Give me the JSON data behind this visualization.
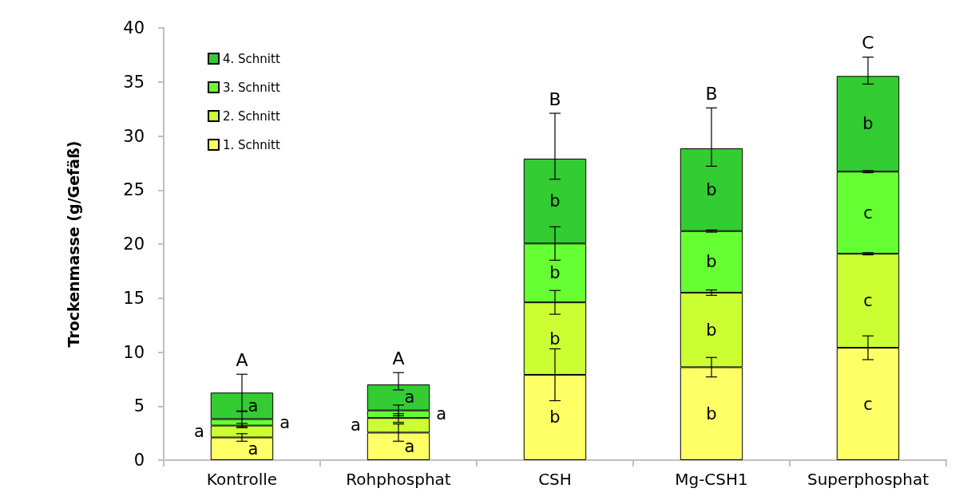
{
  "chart_data": {
    "type": "bar",
    "stacked": true,
    "ylabel": "Trockenmasse (g/Gefäß)",
    "categories": [
      "Kontrolle",
      "Rohphosphat",
      "CSH",
      "Mg-CSH1",
      "Superphosphat"
    ],
    "series": [
      {
        "name": "1. Schnitt",
        "color": "#ffff66",
        "values": [
          2.1,
          2.55,
          7.9,
          8.6,
          10.4
        ],
        "errors": [
          0.35,
          0.8,
          2.4,
          0.9,
          1.1
        ],
        "value_labels": [
          "a",
          "a",
          "b",
          "b",
          "c"
        ]
      },
      {
        "name": "2. Schnitt",
        "color": "#ccff33",
        "values": [
          1.1,
          1.35,
          6.7,
          6.9,
          8.7
        ],
        "errors": [
          0.2,
          0.4,
          1.1,
          0.25,
          0.1
        ],
        "value_labels": [
          "a",
          "a",
          "b",
          "b",
          "c"
        ]
      },
      {
        "name": "3. Schnitt",
        "color": "#66ff33",
        "values": [
          0.6,
          0.7,
          5.45,
          5.7,
          7.6
        ],
        "errors": [
          0.7,
          0.5,
          1.55,
          0.1,
          0.1
        ],
        "value_labels": [
          "a",
          "a",
          "b",
          "b",
          "c"
        ]
      },
      {
        "name": "4. Schnitt",
        "color": "#33cc33",
        "values": [
          2.45,
          2.4,
          7.85,
          7.65,
          8.85
        ],
        "errors": [
          1.7,
          [
            6.5,
            8.1
          ],
          [
            26.0,
            32.1
          ],
          [
            27.2,
            32.6
          ],
          [
            34.8,
            37.3
          ]
        ],
        "value_labels": [
          "a",
          "a",
          "b",
          "b",
          "b"
        ]
      }
    ],
    "ylim": [
      0,
      40
    ],
    "yticks": [
      0,
      5,
      10,
      15,
      20,
      25,
      30,
      35,
      40
    ],
    "grid": false,
    "legend": "top left",
    "annotations": [
      {
        "text": "A",
        "x": "Kontrolle",
        "y": 6.25
      },
      {
        "text": "A",
        "x": "Rohphosphat",
        "y": 7.0
      },
      {
        "text": "B",
        "x": "CSH",
        "y": 27.9
      },
      {
        "text": "B",
        "x": "Mg-CSH1",
        "y": 28.85
      },
      {
        "text": "C",
        "x": "Superphosphat",
        "y": 35.55
      }
    ]
  }
}
